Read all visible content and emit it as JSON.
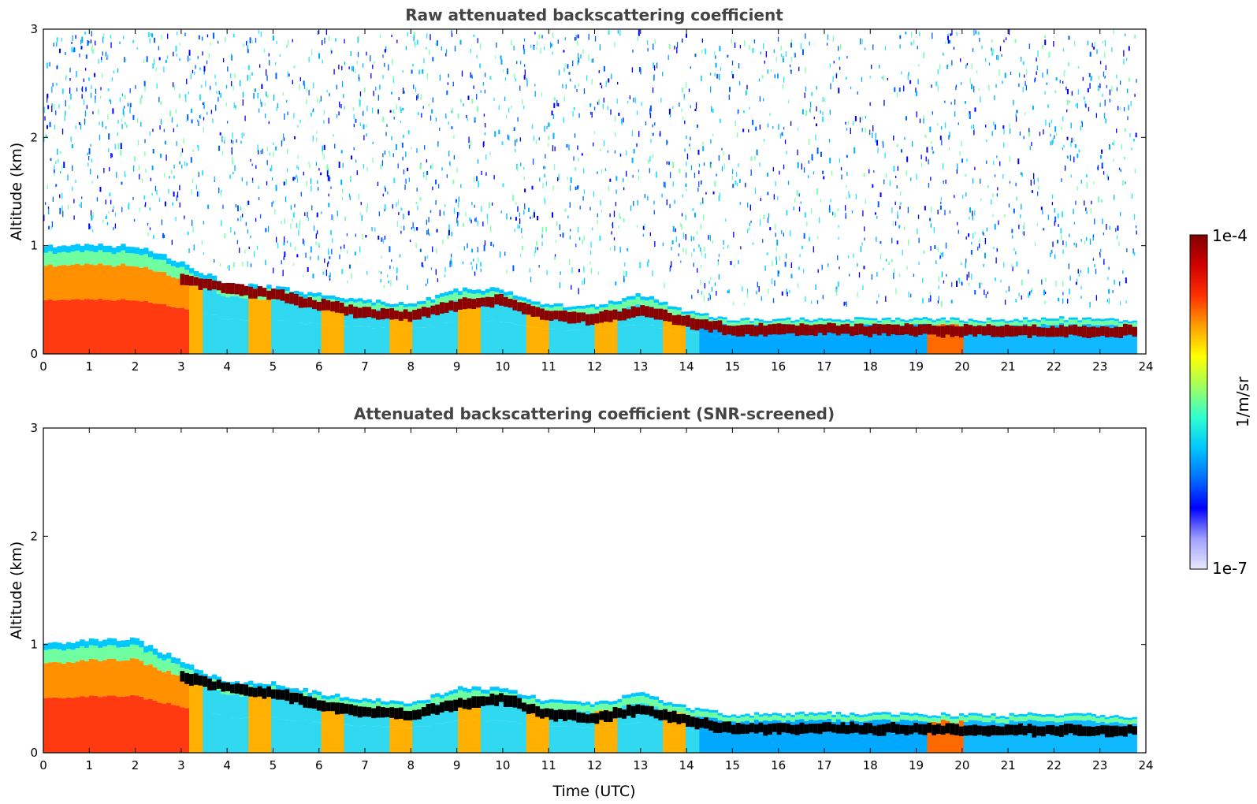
{
  "chart_data": [
    {
      "type": "heatmap",
      "title": "Raw attenuated backscattering coefficient",
      "xlabel": "",
      "ylabel": "Altitude (km)",
      "xlim": [
        0,
        24
      ],
      "ylim": [
        0,
        3
      ],
      "xticks": [
        0,
        1,
        2,
        3,
        4,
        5,
        6,
        7,
        8,
        9,
        10,
        11,
        12,
        13,
        14,
        15,
        16,
        17,
        18,
        19,
        20,
        21,
        22,
        23,
        24
      ],
      "yticks": [
        0,
        1,
        2,
        3
      ],
      "data_end_x": 23.8,
      "layer_top_km": {
        "x": [
          0,
          1,
          2,
          3,
          4,
          5,
          6,
          7,
          8,
          9,
          10,
          11,
          12,
          13,
          14,
          15,
          16,
          17,
          18,
          19,
          20,
          21,
          22,
          23,
          23.8
        ],
        "y": [
          1.0,
          1.0,
          1.0,
          0.85,
          0.65,
          0.62,
          0.55,
          0.5,
          0.45,
          0.6,
          0.6,
          0.45,
          0.45,
          0.55,
          0.4,
          0.32,
          0.32,
          0.33,
          0.32,
          0.33,
          0.32,
          0.32,
          0.33,
          0.32,
          0.32
        ]
      },
      "dense_layer_km": {
        "x": [
          3,
          4,
          5,
          6,
          7,
          8,
          9,
          10,
          11,
          12,
          13,
          14,
          15,
          16,
          17,
          18,
          19,
          20,
          21,
          22,
          23,
          23.8
        ],
        "y": [
          0.7,
          0.6,
          0.55,
          0.45,
          0.38,
          0.35,
          0.45,
          0.5,
          0.35,
          0.32,
          0.4,
          0.3,
          0.22,
          0.22,
          0.23,
          0.22,
          0.22,
          0.21,
          0.21,
          0.21,
          0.21,
          0.21
        ]
      },
      "noise": true,
      "highlight_color": "#8b0000"
    },
    {
      "type": "heatmap",
      "title": "Attenuated backscattering coefficient (SNR-screened)",
      "xlabel": "Time (UTC)",
      "ylabel": "Altitude (km)",
      "xlim": [
        0,
        24
      ],
      "ylim": [
        0,
        3
      ],
      "xticks": [
        0,
        1,
        2,
        3,
        4,
        5,
        6,
        7,
        8,
        9,
        10,
        11,
        12,
        13,
        14,
        15,
        16,
        17,
        18,
        19,
        20,
        21,
        22,
        23,
        24
      ],
      "yticks": [
        0,
        1,
        2,
        3
      ],
      "data_end_x": 23.8,
      "layer_top_km": {
        "x": [
          0,
          1,
          2,
          3,
          4,
          5,
          6,
          7,
          8,
          9,
          10,
          11,
          12,
          13,
          14,
          15,
          16,
          17,
          18,
          19,
          20,
          21,
          22,
          23,
          23.8
        ],
        "y": [
          1.0,
          1.05,
          1.05,
          0.85,
          0.65,
          0.65,
          0.55,
          0.5,
          0.45,
          0.6,
          0.6,
          0.48,
          0.45,
          0.55,
          0.42,
          0.35,
          0.36,
          0.37,
          0.36,
          0.36,
          0.35,
          0.35,
          0.36,
          0.35,
          0.33
        ]
      },
      "dense_layer_km": {
        "x": [
          3,
          4,
          5,
          6,
          7,
          8,
          9,
          10,
          11,
          12,
          13,
          14,
          15,
          16,
          17,
          18,
          19,
          20,
          21,
          22,
          23,
          23.8
        ],
        "y": [
          0.7,
          0.6,
          0.55,
          0.45,
          0.38,
          0.35,
          0.45,
          0.5,
          0.35,
          0.32,
          0.4,
          0.3,
          0.22,
          0.22,
          0.23,
          0.22,
          0.22,
          0.21,
          0.21,
          0.21,
          0.21,
          0.21
        ]
      },
      "noise": false,
      "highlight_color": "#000000"
    }
  ],
  "colorbar": {
    "label": "1/m/sr",
    "max_label": "1e-4",
    "min_label": "1e-7",
    "colors": [
      "#e8e8ff",
      "#a0a0ff",
      "#0000ff",
      "#0070ff",
      "#00c8ff",
      "#30ffd0",
      "#a0ff60",
      "#ffff00",
      "#ffa000",
      "#ff3000",
      "#d00000",
      "#800000"
    ]
  }
}
